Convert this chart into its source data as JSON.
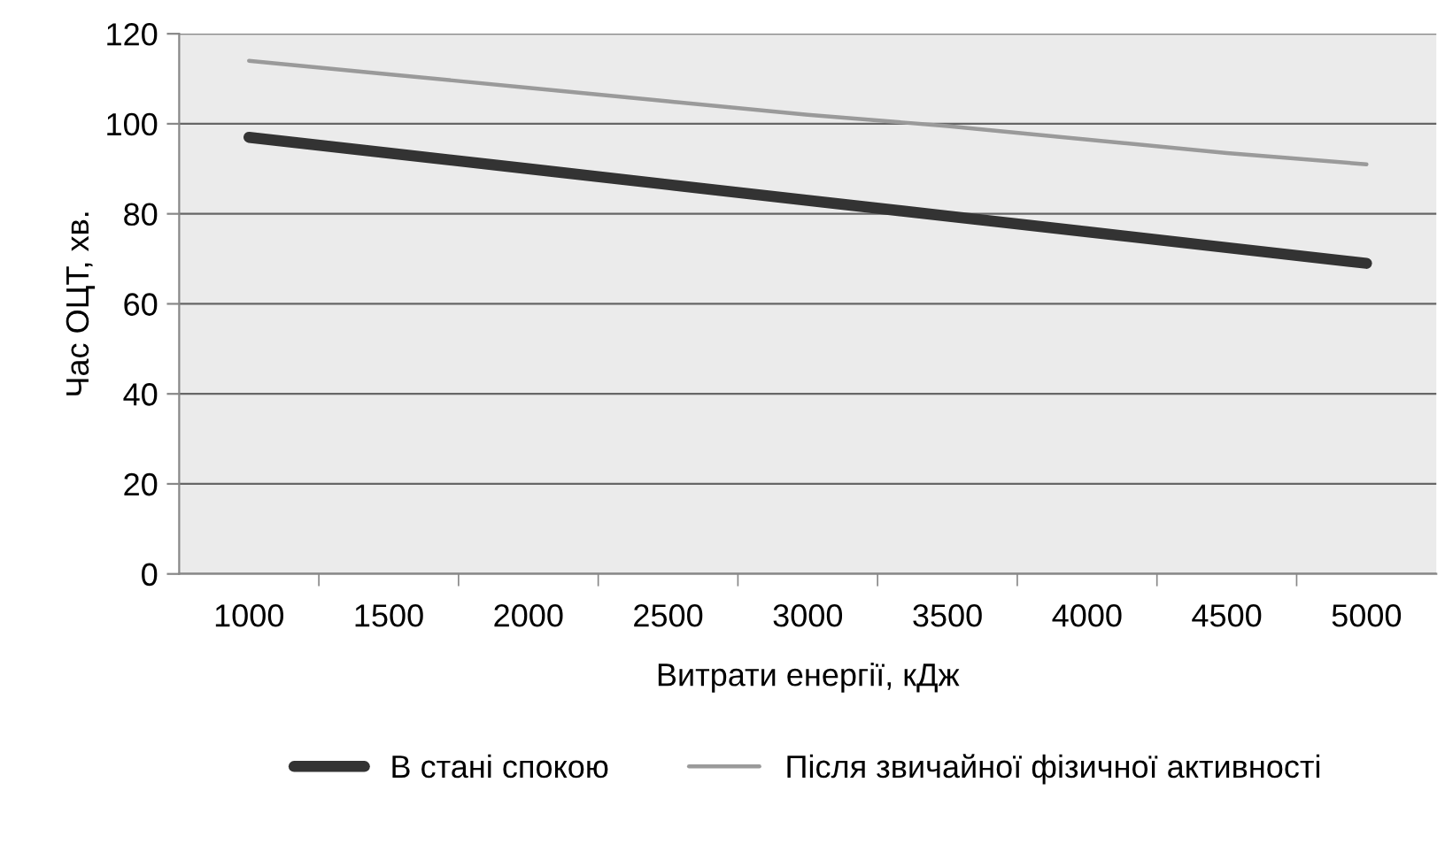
{
  "chart_data": {
    "type": "line",
    "xlabel": "Витрати енергії, кДж",
    "ylabel": "Час ОЦТ, хв.",
    "categories": [
      "1000",
      "1500",
      "2000",
      "2500",
      "3000",
      "3500",
      "4000",
      "4500",
      "5000"
    ],
    "series": [
      {
        "name": "В стані спокою",
        "color": "#333333",
        "values": [
          97,
          93.5,
          90,
          86.5,
          83,
          79.5,
          76,
          72.5,
          69
        ]
      },
      {
        "name": "Після звичайної фізичної активності",
        "color": "#9a9a9a",
        "values": [
          114,
          111,
          108,
          105,
          102,
          99.5,
          96.5,
          93.5,
          91
        ]
      }
    ],
    "ylim": [
      0,
      120
    ],
    "yticks": [
      0,
      20,
      40,
      60,
      80,
      100,
      120
    ],
    "grid": "y",
    "legend": "bottom"
  }
}
